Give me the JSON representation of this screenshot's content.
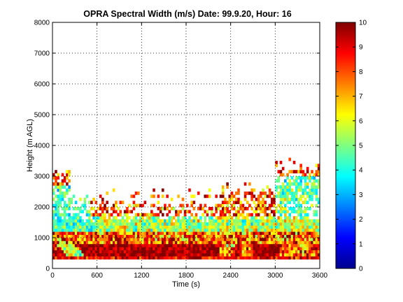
{
  "chart_data": {
    "type": "heatmap",
    "title": "OPRA Spectral Width (m/s)  Date: 99.9.20, Hour: 16",
    "xlabel": "Time (s)",
    "ylabel": "Height (m AGL)",
    "xlim": [
      0,
      3600
    ],
    "ylim": [
      0,
      8000
    ],
    "xticks": [
      "0",
      "600",
      "1200",
      "1800",
      "2400",
      "3000",
      "3600"
    ],
    "yticks": [
      "0",
      "1000",
      "2000",
      "3000",
      "4000",
      "5000",
      "6000",
      "7000",
      "8000"
    ],
    "grid": true,
    "colorbar": {
      "min": 0,
      "max": 10,
      "ticks": [
        "0",
        "1",
        "2",
        "3",
        "4",
        "5",
        "6",
        "7",
        "8",
        "9",
        "10"
      ],
      "colormap": "jet"
    },
    "data_extent": {
      "height_min": 300,
      "height_max_typical": 2800,
      "note_regions": [
        {
          "x": [
            0,
            300
          ],
          "y": [
            300,
            3300
          ]
        },
        {
          "x": [
            300,
            2300
          ],
          "y": [
            300,
            2600
          ]
        },
        {
          "x": [
            2300,
            3600
          ],
          "y": [
            300,
            3600
          ]
        }
      ]
    }
  }
}
